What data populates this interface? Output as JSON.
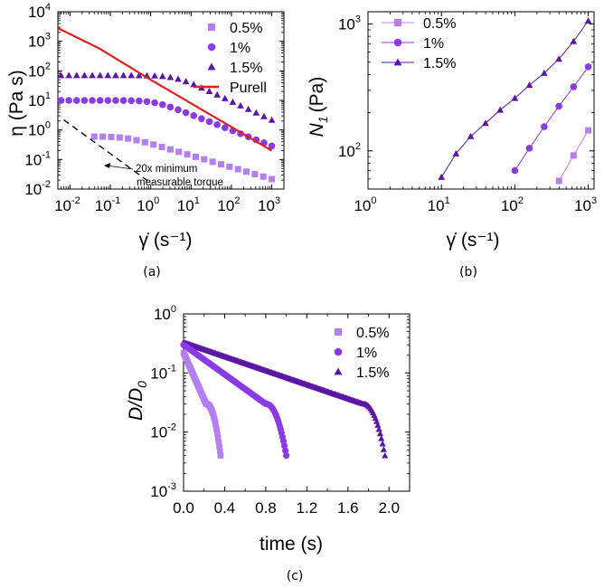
{
  "colors": {
    "c05": "#b57ff0",
    "c1": "#8a3be6",
    "c15": "#5b16a4",
    "purell": "#e02020",
    "torque": "#000000"
  },
  "chart_data": [
    {
      "id": "a",
      "type": "scatter",
      "caption": "(a)",
      "ylabel": "η (Pa s)",
      "xlabel": "γ̇ (s⁻¹)",
      "xscale": "log",
      "yscale": "log",
      "xlim": [
        0.005,
        2000
      ],
      "ylim": [
        0.01,
        10000
      ],
      "x_ticks": [
        {
          "base": "10",
          "exp": "-2"
        },
        {
          "base": "10",
          "exp": "-1"
        },
        {
          "base": "10",
          "exp": "0"
        },
        {
          "base": "10",
          "exp": "1"
        },
        {
          "base": "10",
          "exp": "2"
        },
        {
          "base": "10",
          "exp": "3"
        }
      ],
      "y_ticks": [
        {
          "base": "10",
          "exp": "-2"
        },
        {
          "base": "10",
          "exp": "-1"
        },
        {
          "base": "10",
          "exp": "0"
        },
        {
          "base": "10",
          "exp": "1"
        },
        {
          "base": "10",
          "exp": "2"
        },
        {
          "base": "10",
          "exp": "3"
        },
        {
          "base": "10",
          "exp": "4"
        }
      ],
      "legend": [
        {
          "label": "0.5%",
          "marker": "square",
          "series": "0.5%"
        },
        {
          "label": "1%",
          "marker": "circle",
          "series": "1%"
        },
        {
          "label": "1.5%",
          "marker": "triangle",
          "series": "1.5%"
        },
        {
          "label": "Purell",
          "marker": "line",
          "series": "Purell"
        }
      ],
      "annotation": {
        "line1": "20x minimum",
        "line2": "measurable torque"
      },
      "series": [
        {
          "name": "0.5%",
          "marker": "square",
          "color_key": "c05",
          "x_range": [
            0.04,
            1000
          ],
          "n": 22,
          "profile": "carreau",
          "eta0": 0.6,
          "lambda": 4,
          "n_index": 0.6
        },
        {
          "name": "1%",
          "marker": "circle",
          "color_key": "c1",
          "x_range": [
            0.006,
            1000
          ],
          "n": 28,
          "profile": "carreau",
          "eta0": 10,
          "lambda": 0.8,
          "n_index": 0.47
        },
        {
          "name": "1.5%",
          "marker": "triangle",
          "color_key": "c15",
          "x_range": [
            0.006,
            1000
          ],
          "n": 28,
          "profile": "carreau",
          "eta0": 70,
          "lambda": 0.25,
          "n_index": 0.37
        },
        {
          "name": "Purell",
          "marker": "line",
          "color_key": "purell",
          "x_range": [
            0.005,
            1000
          ],
          "profile": "powerlaw",
          "points": [
            [
              0.005,
              2800
            ],
            [
              0.05,
              600
            ],
            [
              1,
              50
            ],
            [
              1000,
              0.2
            ]
          ]
        },
        {
          "name": "min torque",
          "marker": "dashed",
          "color_key": "torque",
          "x_range": [
            0.007,
            1
          ],
          "profile": "powerlaw",
          "points": [
            [
              0.007,
              2.2
            ],
            [
              1,
              0.016
            ]
          ]
        }
      ]
    },
    {
      "id": "b",
      "type": "line",
      "caption": "(b)",
      "ylabel": "N",
      "ylabel_sub": "1",
      "ylabel_unit": "(Pa)",
      "xlabel": "γ̇ (s⁻¹)",
      "xscale": "log",
      "yscale": "log",
      "xlim": [
        1,
        1200
      ],
      "ylim": [
        50,
        1250
      ],
      "x_ticks": [
        {
          "base": "10",
          "exp": "0"
        },
        {
          "base": "10",
          "exp": "1"
        },
        {
          "base": "10",
          "exp": "2"
        },
        {
          "base": "10",
          "exp": "3"
        }
      ],
      "y_ticks": [
        {
          "base": "10",
          "exp": "2"
        },
        {
          "base": "10",
          "exp": "3"
        }
      ],
      "legend": [
        {
          "label": "0.5%",
          "marker": "square",
          "series": "0.5%"
        },
        {
          "label": "1%",
          "marker": "circle",
          "series": "1%"
        },
        {
          "label": "1.5%",
          "marker": "triangle",
          "series": "1.5%"
        }
      ],
      "series": [
        {
          "name": "0.5%",
          "marker": "square",
          "color_key": "c05",
          "x": [
            400,
            630,
            1000
          ],
          "y": [
            58,
            92,
            145
          ]
        },
        {
          "name": "1%",
          "marker": "circle",
          "color_key": "c1",
          "x": [
            100,
            158,
            251,
            398,
            631,
            1000
          ],
          "y": [
            70,
            105,
            155,
            225,
            320,
            460
          ]
        },
        {
          "name": "1.5%",
          "marker": "triangle",
          "color_key": "c15",
          "x": [
            10,
            15.8,
            25.1,
            39.8,
            63.1,
            100,
            158,
            251,
            398,
            631,
            1000
          ],
          "y": [
            62,
            95,
            130,
            165,
            210,
            260,
            330,
            410,
            530,
            730,
            1060
          ]
        }
      ]
    },
    {
      "id": "c",
      "type": "scatter",
      "caption": "(c)",
      "ylabel": "D/D",
      "ylabel_sub": "0",
      "xlabel": "time (s)",
      "xscale": "linear",
      "yscale": "log",
      "xlim": [
        0,
        2.2
      ],
      "ylim": [
        0.001,
        1
      ],
      "x_ticks": [
        {
          "label": "0.0",
          "v": 0
        },
        {
          "label": "0.4",
          "v": 0.4
        },
        {
          "label": "0.8",
          "v": 0.8
        },
        {
          "label": "1.2",
          "v": 1.2
        },
        {
          "label": "1.6",
          "v": 1.6
        },
        {
          "label": "2.0",
          "v": 2.0
        }
      ],
      "y_ticks": [
        {
          "base": "10",
          "exp": "-3"
        },
        {
          "base": "10",
          "exp": "-2"
        },
        {
          "base": "10",
          "exp": "-1"
        },
        {
          "base": "10",
          "exp": "0"
        }
      ],
      "legend": [
        {
          "label": "0.5%",
          "marker": "square",
          "series": "0.5%"
        },
        {
          "label": "1%",
          "marker": "circle",
          "series": "1%"
        },
        {
          "label": "1.5%",
          "marker": "triangle",
          "series": "1.5%"
        }
      ],
      "series": [
        {
          "name": "1.5%",
          "marker": "triangle",
          "color_key": "c15",
          "t0": 0,
          "d0": 0.33,
          "tb": 1.75,
          "db": 0.03,
          "tend": 1.96,
          "dend": 0.004,
          "n": 170
        },
        {
          "name": "1%",
          "marker": "circle",
          "color_key": "c1",
          "t0": 0,
          "d0": 0.3,
          "tb": 0.8,
          "db": 0.03,
          "tend": 1.0,
          "dend": 0.004,
          "n": 110
        },
        {
          "name": "0.5%",
          "marker": "square",
          "color_key": "c05",
          "t0": 0,
          "d0": 0.22,
          "tb": 0.22,
          "db": 0.03,
          "tend": 0.36,
          "dend": 0.004,
          "n": 60
        }
      ]
    }
  ]
}
